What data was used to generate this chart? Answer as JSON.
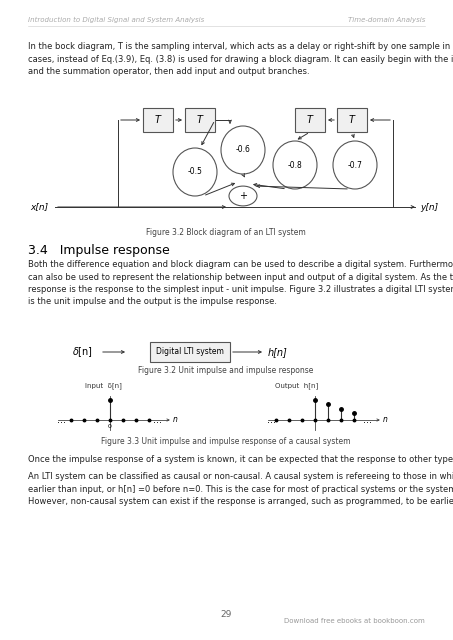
{
  "header_left": "Introduction to Digital Signal and System Analysis",
  "header_right": "Time-domain Analysis",
  "page_number": "29",
  "footer_right": "Download free ebooks at bookboon.com",
  "intro_text": "In the bock diagram, T is the sampling interval, which acts as a delay or right-shift by one sample in time. For general\ncases, instead of Eq.(3.9), Eq. (3.8) is used for drawing a block diagram. It can easily begin with the input, output flows\nand the summation operator, then add input and output branches.",
  "fig1_caption": "Figure 3.2 Block diagram of an LTI system",
  "section_title": "3.4   Impulse response",
  "section_text1": "Both the difference equation and block diagram can be used to describe a digital system. Furthermore, the impulse response\ncan also be used to represent the relationship between input and output of a digital system. As the terms suggest, impulse\nresponse is the response to the simplest input - unit impulse. Figure 3.2 illustrates a digital LTI system, in which the input\nis the unit impulse and the output is the impulse response.",
  "fig2_caption": "Figure 3.2 Unit impulse and impulse response",
  "fig3_caption": "Figure 3.3 Unit impulse and impulse response of a causal system",
  "section_text2": "Once the impulse response of a system is known, it can be expected that the response to other types of input can be derived.",
  "section_text3": "An LTI system can be classified as causal or non-causal. A causal system is refereeing to those in which the response is no\nearlier than input, or h[n] =0 before n=0. This is the case for most of practical systems or the systems in the natural world.\nHowever, non-causal system can exist if the response is arranged, such as programmed, to be earlier than the excitation.",
  "bg_color": "#ffffff",
  "text_color": "#000000",
  "header_color": "#999999",
  "arrow_color": "#333333"
}
